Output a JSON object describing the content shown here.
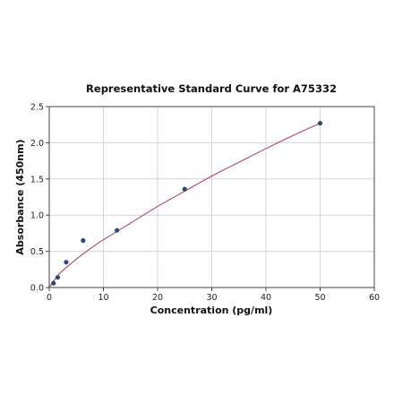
{
  "chart_data": {
    "type": "scatter",
    "title": "Representative Standard Curve for A75332",
    "xlabel": "Concentration (pg/ml)",
    "ylabel": "Absorbance (450nm)",
    "xlim": [
      0,
      60
    ],
    "ylim": [
      0,
      2.5
    ],
    "x_ticks": [
      "0",
      "10",
      "20",
      "30",
      "40",
      "50",
      "60"
    ],
    "y_ticks": [
      "0.0",
      "0.5",
      "1.0",
      "1.5",
      "2.0",
      "2.5"
    ],
    "grid": true,
    "series": [
      {
        "points": [
          {
            "x": 0.78,
            "y": 0.06
          },
          {
            "x": 1.56,
            "y": 0.14
          },
          {
            "x": 3.13,
            "y": 0.35
          },
          {
            "x": 6.25,
            "y": 0.65
          },
          {
            "x": 12.5,
            "y": 0.79
          },
          {
            "x": 25,
            "y": 1.36
          },
          {
            "x": 50,
            "y": 2.27
          }
        ],
        "color": "#2e4a78"
      }
    ],
    "fit": {
      "type": "curve",
      "color": "#b5566e",
      "x": [
        0,
        1,
        2,
        4,
        6,
        8,
        10,
        15,
        20,
        25,
        30,
        35,
        40,
        45,
        50
      ],
      "y": [
        0.0,
        0.11,
        0.2,
        0.33,
        0.45,
        0.56,
        0.66,
        0.89,
        1.12,
        1.33,
        1.54,
        1.73,
        1.92,
        2.1,
        2.27
      ]
    }
  }
}
